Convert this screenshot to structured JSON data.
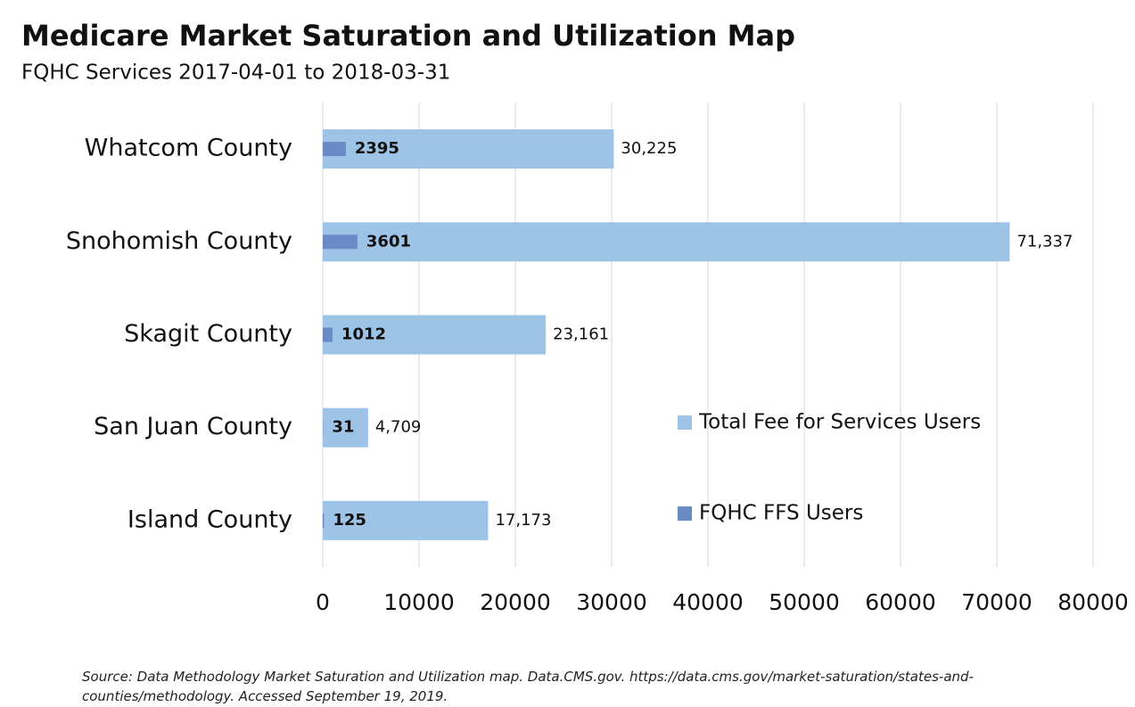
{
  "chart_data": {
    "type": "barh",
    "title": "Medicare Market Saturation and Utilization Map",
    "subtitle": "FQHC Services 2017-04-01 to 2018-03-31",
    "categories": [
      "Whatcom County",
      "Snohomish County",
      "Skagit County",
      "San Juan County",
      "Island County"
    ],
    "series": [
      {
        "name": "Total Fee for Services Users",
        "color": "#9dc3e6",
        "values": [
          30225,
          71337,
          23161,
          4709,
          17173
        ],
        "value_labels": [
          "30,225",
          "71,337",
          "23,161",
          "4,709",
          "17,173"
        ]
      },
      {
        "name": "FQHC FFS Users",
        "color": "#6a8ac6",
        "values": [
          2395,
          3601,
          1012,
          31,
          125
        ]
      }
    ],
    "xlim": [
      0,
      80000
    ],
    "xticks": [
      0,
      10000,
      20000,
      30000,
      40000,
      50000,
      60000,
      70000,
      80000
    ],
    "grid": true,
    "legend": "right",
    "source": "Source: Data Methodology Market Saturation and Utilization map.  Data.CMS.gov.  https://data.cms.gov/market-saturation/states-and-counties/methodology. Accessed September 19, 2019."
  }
}
